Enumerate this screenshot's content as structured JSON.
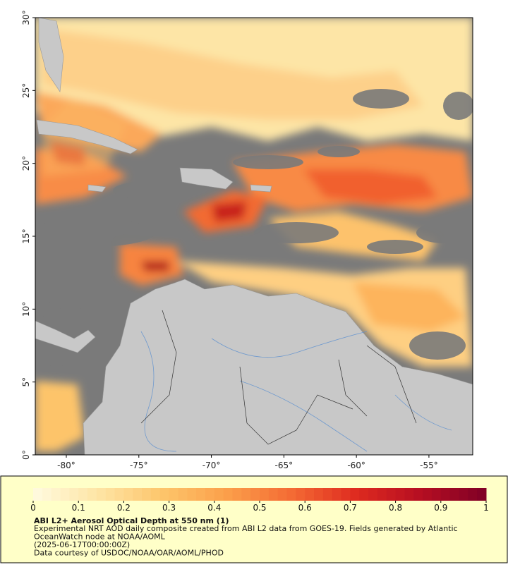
{
  "map": {
    "lon_range": [
      -82.14,
      -51.98
    ],
    "lat_range": [
      0,
      30
    ],
    "lon_ticks": [
      {
        "value": -80,
        "label": "-80°"
      },
      {
        "value": -75,
        "label": "-75°"
      },
      {
        "value": -70,
        "label": "-70°"
      },
      {
        "value": -65,
        "label": "-65°"
      },
      {
        "value": -60,
        "label": "-60°"
      },
      {
        "value": -55,
        "label": "-55°"
      }
    ],
    "lat_ticks": [
      {
        "value": 0,
        "label": "0°"
      },
      {
        "value": 5,
        "label": "5°"
      },
      {
        "value": 10,
        "label": "10°"
      },
      {
        "value": 15,
        "label": "15°"
      },
      {
        "value": 20,
        "label": "20°"
      },
      {
        "value": 25,
        "label": "25°"
      },
      {
        "value": 30,
        "label": "30°"
      }
    ]
  },
  "colorbar": {
    "range": [
      0,
      1
    ],
    "ticks": [
      0,
      0.1,
      0.2,
      0.3,
      0.4,
      0.5,
      0.6,
      0.7,
      0.8,
      0.9,
      1
    ],
    "colormap": [
      "#fffbe0",
      "#fee5a5",
      "#fdc56b",
      "#fb9f4a",
      "#f46a34",
      "#de2a1f",
      "#b50e22",
      "#7f0026"
    ]
  },
  "caption": {
    "title": "ABI L2+ Aerosol Optical Depth at 550 nm (1)",
    "lines": [
      "Experimental NRT AOD daily composite created from ABI L2 data from GOES-19. Fields generated by Atlantic",
      "OceanWatch node at NOAA/AOML",
      "(2025-06-17T00:00:00Z)",
      "Data courtesy of USDOC/NOAA/OAR/AOML/PHOD"
    ]
  }
}
